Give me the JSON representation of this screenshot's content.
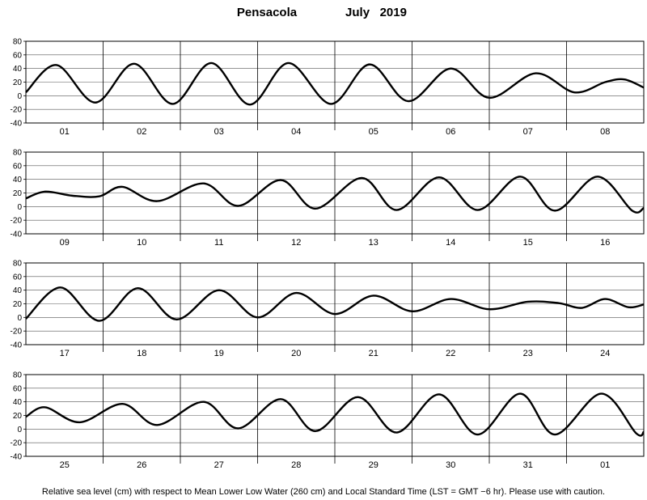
{
  "title": {
    "station": "Pensacola",
    "month_year": "July   2019"
  },
  "footer": "Relative sea level (cm) with respect to Mean Lower Low Water (260 cm) and Local Standard Time (LST = GMT −6 hr). Please use with caution.",
  "colors": {
    "line": "#000000",
    "grid": "#555555",
    "frame": "#000000",
    "background": "#ffffff"
  },
  "chart_data": [
    {
      "type": "line",
      "panel": 1,
      "x_labels": [
        "01",
        "02",
        "03",
        "04",
        "05",
        "06",
        "07",
        "08"
      ],
      "ylim": [
        -40,
        80
      ],
      "yticks": [
        80,
        60,
        40,
        20,
        0,
        -20,
        -40
      ],
      "grid": true,
      "xunit": "day",
      "x": [
        0,
        0.4,
        0.9,
        1.4,
        1.9,
        2.4,
        2.9,
        3.4,
        3.95,
        4.45,
        4.95,
        5.5,
        6.0,
        6.6,
        7.1,
        7.5,
        7.75,
        8.0
      ],
      "y": [
        5,
        45,
        -10,
        47,
        -12,
        48,
        -13,
        48,
        -12,
        46,
        -8,
        40,
        -3,
        33,
        5,
        20,
        24,
        12
      ]
    },
    {
      "type": "line",
      "panel": 2,
      "x_labels": [
        "09",
        "10",
        "11",
        "12",
        "13",
        "14",
        "15",
        "16"
      ],
      "ylim": [
        -40,
        80
      ],
      "yticks": [
        80,
        60,
        40,
        20,
        0,
        -20,
        -40
      ],
      "grid": true,
      "xunit": "day",
      "x": [
        0,
        0.25,
        0.6,
        0.95,
        1.25,
        1.7,
        2.3,
        2.75,
        3.3,
        3.75,
        4.35,
        4.8,
        5.35,
        5.85,
        6.4,
        6.85,
        7.4,
        7.85,
        8.0
      ],
      "y": [
        12,
        22,
        16,
        15,
        29,
        8,
        34,
        1,
        39,
        -3,
        42,
        -5,
        43,
        -5,
        44,
        -6,
        44,
        -6,
        -2
      ]
    },
    {
      "type": "line",
      "panel": 3,
      "x_labels": [
        "17",
        "18",
        "19",
        "20",
        "21",
        "22",
        "23",
        "24"
      ],
      "ylim": [
        -40,
        80
      ],
      "yticks": [
        80,
        60,
        40,
        20,
        0,
        -20,
        -40
      ],
      "grid": true,
      "xunit": "day",
      "x": [
        0,
        0.45,
        0.95,
        1.45,
        1.95,
        2.5,
        3.0,
        3.5,
        4.0,
        4.5,
        5.0,
        5.5,
        6.0,
        6.5,
        6.9,
        7.2,
        7.5,
        7.8,
        8.0
      ],
      "y": [
        -2,
        44,
        -5,
        43,
        -3,
        40,
        0,
        36,
        5,
        32,
        9,
        27,
        12,
        23,
        21,
        14,
        27,
        15,
        19
      ]
    },
    {
      "type": "line",
      "panel": 4,
      "x_labels": [
        "25",
        "26",
        "27",
        "28",
        "29",
        "30",
        "31",
        "01"
      ],
      "ylim": [
        -40,
        80
      ],
      "yticks": [
        80,
        60,
        40,
        20,
        0,
        -20,
        -40
      ],
      "grid": true,
      "xunit": "day",
      "x": [
        0,
        0.25,
        0.7,
        1.25,
        1.7,
        2.3,
        2.75,
        3.3,
        3.75,
        4.3,
        4.8,
        5.35,
        5.85,
        6.4,
        6.85,
        7.45,
        7.9,
        8.0
      ],
      "y": [
        18,
        32,
        10,
        37,
        6,
        40,
        1,
        44,
        -3,
        47,
        -5,
        51,
        -8,
        52,
        -8,
        52,
        -6,
        -4
      ]
    }
  ]
}
